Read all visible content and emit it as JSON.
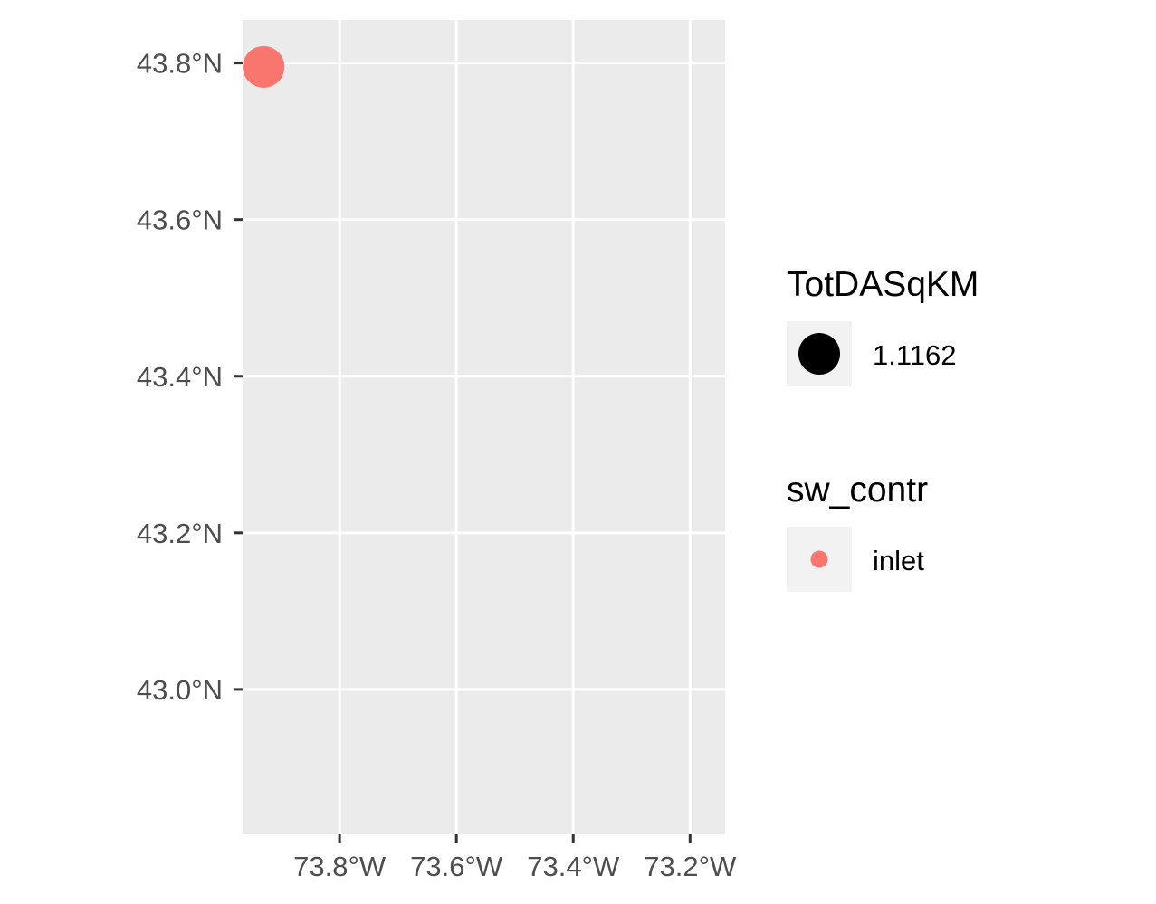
{
  "chart_data": {
    "type": "scatter",
    "title": "",
    "xlabel": "",
    "ylabel": "",
    "xlim": [
      -73.966,
      -73.14
    ],
    "ylim": [
      42.815,
      43.855
    ],
    "x_ticks": [
      {
        "value": -73.8,
        "label": "73.8°W"
      },
      {
        "value": -73.6,
        "label": "73.6°W"
      },
      {
        "value": -73.4,
        "label": "73.4°W"
      },
      {
        "value": -73.2,
        "label": "73.2°W"
      }
    ],
    "y_ticks": [
      {
        "value": 43.0,
        "label": "43.0°N"
      },
      {
        "value": 43.2,
        "label": "43.2°N"
      },
      {
        "value": 43.4,
        "label": "43.4°N"
      },
      {
        "value": 43.6,
        "label": "43.6°N"
      },
      {
        "value": 43.8,
        "label": "43.8°N"
      }
    ],
    "grid": true,
    "points": [
      {
        "lon": -73.93,
        "lat": 43.795,
        "sw_contr": "inlet",
        "TotDASqKM": 1.1162
      }
    ],
    "legend_placement": "right",
    "legends": [
      {
        "title": "TotDASqKM",
        "entries": [
          {
            "label": "1.1162",
            "color": "#000000",
            "symbol": "large-dot"
          }
        ]
      },
      {
        "title": "sw_contr",
        "entries": [
          {
            "label": "inlet",
            "color": "#F8766D",
            "symbol": "small-dot"
          }
        ]
      }
    ]
  },
  "colors": {
    "panel_background": "#EBEBEB",
    "grid": "#FFFFFF",
    "point": "#F8766D",
    "axis_text": "#4D4D4D",
    "tick": "#333333",
    "legend_key_background": "#F2F2F2"
  }
}
